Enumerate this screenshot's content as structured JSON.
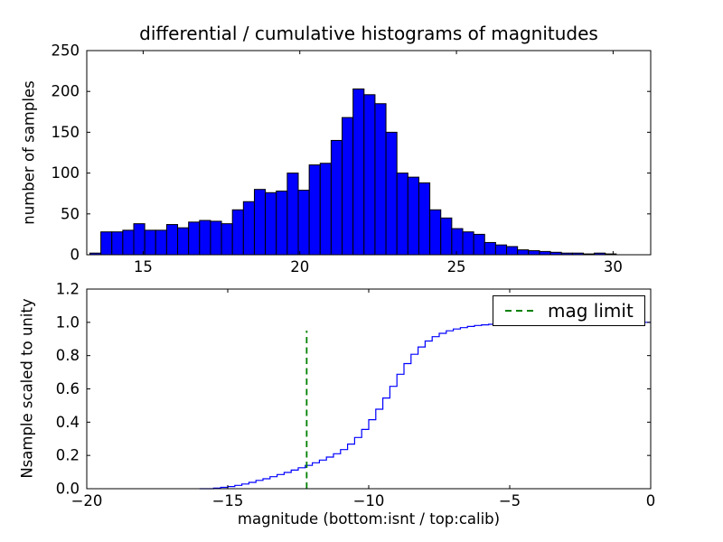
{
  "title": "differential / cumulative histograms of magnitudes",
  "colors": {
    "background": "#ffffff",
    "axes": "#000000",
    "bar_fill": "#0000ff",
    "bar_edge": "#000000",
    "step_line": "#0000ff",
    "vline": "#008000"
  },
  "chart_data": [
    {
      "id": "differential-histogram",
      "type": "bar",
      "title": "differential / cumulative histograms of magnitudes",
      "ylabel": "number of samples",
      "xlim": [
        13.2,
        31.2
      ],
      "ylim": [
        0,
        250
      ],
      "grid": false,
      "xticks": {
        "values": [
          15,
          20,
          25,
          30
        ],
        "labels": [
          "15",
          "20",
          "25",
          "30"
        ]
      },
      "yticks": {
        "values": [
          0,
          50,
          100,
          150,
          200,
          250
        ],
        "labels": [
          "0",
          "50",
          "100",
          "150",
          "200",
          "250"
        ]
      },
      "bins": {
        "start": 13.3,
        "width": 0.35
      },
      "counts": [
        2,
        28,
        28,
        30,
        38,
        30,
        30,
        37,
        33,
        40,
        42,
        41,
        38,
        55,
        65,
        80,
        76,
        78,
        100,
        79,
        110,
        112,
        140,
        168,
        203,
        196,
        185,
        150,
        100,
        95,
        88,
        55,
        45,
        32,
        28,
        25,
        15,
        12,
        10,
        6,
        5,
        4,
        3,
        2,
        2,
        1,
        2,
        1
      ]
    },
    {
      "id": "cumulative-histogram",
      "type": "line",
      "style": "step",
      "xlabel": "magnitude (bottom:isnt / top:calib)",
      "ylabel": "Nsample scaled to unity",
      "xlim": [
        -20,
        0
      ],
      "ylim": [
        0,
        1.2
      ],
      "grid": false,
      "xticks": {
        "values": [
          -20,
          -15,
          -10,
          -5,
          0
        ],
        "labels": [
          "−20",
          "−15",
          "−10",
          "−5",
          "0"
        ]
      },
      "yticks": {
        "values": [
          0,
          0.2,
          0.4,
          0.6,
          0.8,
          1.0,
          1.2
        ],
        "labels": [
          "0.0",
          "0.2",
          "0.4",
          "0.6",
          "0.8",
          "1.0",
          "1.2"
        ]
      },
      "points": [
        [
          -16,
          0
        ],
        [
          -15.5,
          0.004
        ],
        [
          -15.25,
          0.008
        ],
        [
          -15,
          0.013
        ],
        [
          -14.75,
          0.02
        ],
        [
          -14.5,
          0.028
        ],
        [
          -14.25,
          0.038
        ],
        [
          -14,
          0.05
        ],
        [
          -13.75,
          0.06
        ],
        [
          -13.5,
          0.072
        ],
        [
          -13.25,
          0.085
        ],
        [
          -13,
          0.098
        ],
        [
          -12.75,
          0.112
        ],
        [
          -12.5,
          0.126
        ],
        [
          -12.25,
          0.14
        ],
        [
          -12,
          0.156
        ],
        [
          -11.75,
          0.172
        ],
        [
          -11.5,
          0.19
        ],
        [
          -11.25,
          0.21
        ],
        [
          -11,
          0.235
        ],
        [
          -10.75,
          0.268
        ],
        [
          -10.5,
          0.308
        ],
        [
          -10.25,
          0.356
        ],
        [
          -10,
          0.415
        ],
        [
          -9.75,
          0.478
        ],
        [
          -9.5,
          0.545
        ],
        [
          -9.25,
          0.615
        ],
        [
          -9,
          0.688
        ],
        [
          -8.75,
          0.752
        ],
        [
          -8.5,
          0.808
        ],
        [
          -8.25,
          0.852
        ],
        [
          -8,
          0.888
        ],
        [
          -7.75,
          0.914
        ],
        [
          -7.5,
          0.934
        ],
        [
          -7.25,
          0.949
        ],
        [
          -7,
          0.96
        ],
        [
          -6.75,
          0.968
        ],
        [
          -6.5,
          0.975
        ],
        [
          -6.25,
          0.981
        ],
        [
          -6,
          0.985
        ],
        [
          -5.75,
          0.988
        ],
        [
          -5.5,
          0.991
        ],
        [
          -5.25,
          0.993
        ],
        [
          -5,
          0.995
        ],
        [
          -4.5,
          0.997
        ],
        [
          -4,
          0.999
        ],
        [
          -3.5,
          1.0
        ],
        [
          0,
          1.0
        ]
      ],
      "vline": {
        "x": -12.2,
        "y0": 0.0,
        "y1": 0.95,
        "color": "#008000",
        "dashed": true,
        "label": "mag limit"
      },
      "legend": {
        "location": "upper right",
        "entries": [
          {
            "label": "mag limit",
            "color": "#008000",
            "dashed": true
          }
        ]
      }
    }
  ]
}
